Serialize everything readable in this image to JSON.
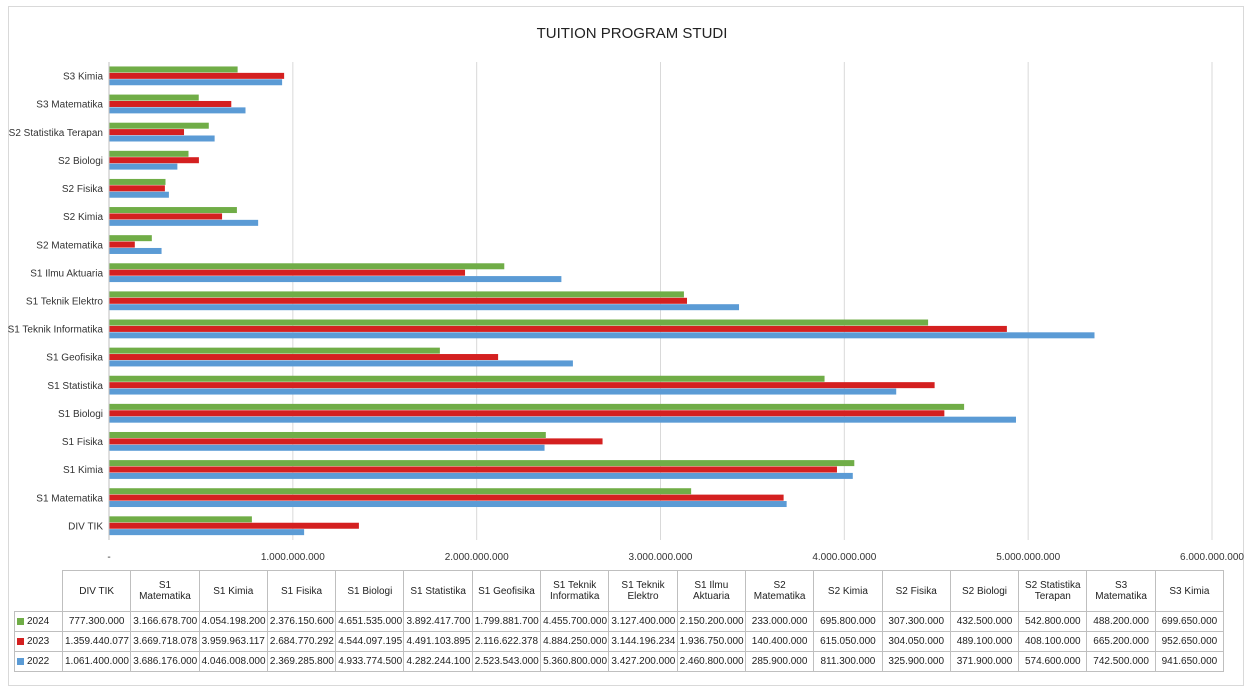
{
  "chart_data": {
    "type": "bar",
    "orientation": "horizontal",
    "title": "TUITION PROGRAM STUDI",
    "categories": [
      "DIV TIK",
      "S1 Matematika",
      "S1 Kimia",
      "S1 Fisika",
      "S1 Biologi",
      "S1 Statistika",
      "S1 Geofisika",
      "S1 Teknik Informatika",
      "S1 Teknik Elektro",
      "S1 Ilmu Aktuaria",
      "S2 Matematika",
      "S2 Kimia",
      "S2 Fisika",
      "S2 Biologi",
      "S2 Statistika Terapan",
      "S3 Matematika",
      "S3 Kimia"
    ],
    "series": [
      {
        "name": "2024",
        "color": "#70ad47",
        "values": [
          777300000,
          3166678700,
          4054198200,
          2376150600,
          4651535000,
          3892417700,
          1799881700,
          4455700000,
          3127400000,
          2150200000,
          233000000,
          695800000,
          307300000,
          432500000,
          542800000,
          488200000,
          699650000
        ],
        "labels": [
          "777.300.000",
          "3.166.678.700",
          "4.054.198.200",
          "2.376.150.600",
          "4.651.535.000",
          "3.892.417.700",
          "1.799.881.700",
          "4.455.700.000",
          "3.127.400.000",
          "2.150.200.000",
          "233.000.000",
          "695.800.000",
          "307.300.000",
          "432.500.000",
          "542.800.000",
          "488.200.000",
          "699.650.000"
        ]
      },
      {
        "name": "2023",
        "color": "#d42020",
        "values": [
          1359440077,
          3669718078,
          3959963117,
          2684770292,
          4544097195,
          4491103895,
          2116622378,
          4884250000,
          3144196234,
          1936750000,
          140400000,
          615050000,
          304050000,
          489100000,
          408100000,
          665200000,
          952650000
        ],
        "labels": [
          "1.359.440.077",
          "3.669.718.078",
          "3.959.963.117",
          "2.684.770.292",
          "4.544.097.195",
          "4.491.103.895",
          "2.116.622.378",
          "4.884.250.000",
          "3.144.196.234",
          "1.936.750.000",
          "140.400.000",
          "615.050.000",
          "304.050.000",
          "489.100.000",
          "408.100.000",
          "665.200.000",
          "952.650.000"
        ]
      },
      {
        "name": "2022",
        "color": "#5b9bd5",
        "values": [
          1061400000,
          3686176000,
          4046008000,
          2369285800,
          4933774500,
          4282244100,
          2523543000,
          5360800000,
          3427200000,
          2460800000,
          285900000,
          811300000,
          325900000,
          371900000,
          574600000,
          742500000,
          941650000
        ],
        "labels": [
          "1.061.400.000",
          "3.686.176.000",
          "4.046.008.000",
          "2.369.285.800",
          "4.933.774.500",
          "4.282.244.100",
          "2.523.543.000",
          "5.360.800.000",
          "3.427.200.000",
          "2.460.800.000",
          "285.900.000",
          "811.300.000",
          "325.900.000",
          "371.900.000",
          "574.600.000",
          "742.500.000",
          "941.650.000"
        ]
      }
    ],
    "xlim": [
      0,
      6000000000
    ],
    "x_ticks": [
      0,
      1000000000,
      2000000000,
      3000000000,
      4000000000,
      5000000000,
      6000000000
    ],
    "x_tick_labels": [
      "-",
      "1.000.000.000",
      "2.000.000.000",
      "3.000.000.000",
      "4.000.000.000",
      "5.000.000.000",
      "6.000.000.000"
    ],
    "grid": true,
    "legend": "data-table"
  }
}
